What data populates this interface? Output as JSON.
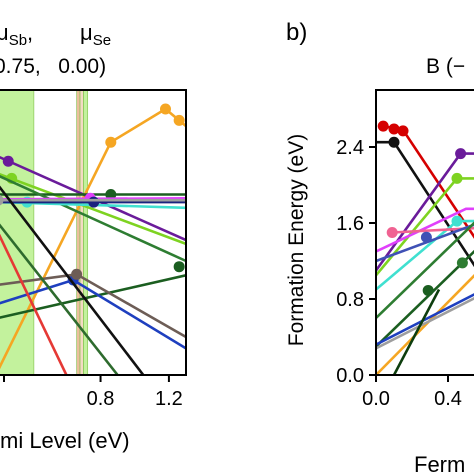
{
  "header": {
    "mu_sb_label": "μ",
    "mu_sb_sub": "Sb",
    "mu_se_label": "μ",
    "mu_se_sub": "Se",
    "comma": ",",
    "values_line": "0.75,   0.00)"
  },
  "chart_data": [
    {
      "type": "line",
      "panel": "a",
      "title": "",
      "xlabel": "mi Level (eV)",
      "ylabel": "",
      "xlim": [
        0.2,
        1.3
      ],
      "ylim": [
        0.0,
        3.0
      ],
      "xticks": [
        "0.8",
        "1.2"
      ],
      "xtick_values": [
        0.8,
        1.2
      ],
      "shaded_bands": [
        {
          "from": 0.2,
          "to": 0.41,
          "color": "#b9f08c"
        },
        {
          "from": 0.66,
          "to": 0.68,
          "color": "#e8b48a"
        },
        {
          "from": 0.68,
          "to": 0.7,
          "color": "#f2d3b8"
        },
        {
          "from": 0.7,
          "to": 0.725,
          "color": "#b9f08c"
        }
      ],
      "series": [
        {
          "color": "#f5a623",
          "x": [
            0.2,
            0.86,
            1.18,
            1.3
          ],
          "y": [
            0.05,
            2.45,
            2.8,
            2.62
          ],
          "points": [
            [
              0.86,
              2.45
            ],
            [
              1.18,
              2.8
            ],
            [
              1.26,
              2.68
            ]
          ]
        },
        {
          "color": "#6a1b9a",
          "x": [
            0.2,
            1.3
          ],
          "y": [
            2.3,
            1.42
          ],
          "points": [
            [
              0.26,
              2.25
            ]
          ]
        },
        {
          "color": "#7ed321",
          "x": [
            0.2,
            1.3
          ],
          "y": [
            2.12,
            1.38
          ],
          "points": [
            [
              0.28,
              2.07
            ]
          ]
        },
        {
          "color": "#1b5e20",
          "x": [
            0.2,
            0.86,
            1.3
          ],
          "y": [
            1.9,
            1.9,
            1.9
          ],
          "points": [
            [
              0.86,
              1.9
            ]
          ]
        },
        {
          "color": "#1b5e20",
          "x": [
            0.2,
            1.3
          ],
          "y": [
            0.6,
            1.05
          ],
          "points": [
            [
              1.26,
              1.14
            ]
          ]
        },
        {
          "color": "#2e7d32",
          "x": [
            0.2,
            1.3
          ],
          "y": [
            2.1,
            1.2
          ],
          "points": []
        },
        {
          "color": "#40e0d0",
          "x": [
            0.2,
            1.3
          ],
          "y": [
            1.82,
            1.76
          ],
          "points": [
            [
              0.37,
              1.82
            ]
          ]
        },
        {
          "color": "#e040fb",
          "x": [
            0.2,
            1.3
          ],
          "y": [
            1.85,
            1.86
          ],
          "points": [
            [
              0.74,
              1.86
            ]
          ]
        },
        {
          "color": "#1a237e",
          "x": [
            0.2,
            1.3
          ],
          "y": [
            1.82,
            1.82
          ],
          "points": [
            [
              0.76,
              1.82
            ]
          ]
        },
        {
          "color": "#9e9e9e",
          "x": [
            0.2,
            1.3
          ],
          "y": [
            1.84,
            1.84
          ],
          "points": [
            [
              0.2,
              1.84
            ]
          ]
        },
        {
          "color": "#1e3fbf",
          "x": [
            0.2,
            0.64,
            1.3
          ],
          "y": [
            0.75,
            1.0,
            0.28
          ],
          "points": [
            [
              0.64,
              1.0
            ]
          ]
        },
        {
          "color": "#6d5d56",
          "x": [
            0.2,
            0.66,
            1.3
          ],
          "y": [
            0.95,
            1.06,
            0.4
          ],
          "points": [
            [
              0.66,
              1.06
            ]
          ]
        },
        {
          "color": "#111111",
          "x": [
            0.2,
            1.05
          ],
          "y": [
            2.0,
            0.0
          ],
          "points": []
        },
        {
          "color": "#2e6b2e",
          "x": [
            0.2,
            0.9
          ],
          "y": [
            1.6,
            0.0
          ],
          "points": []
        },
        {
          "color": "#e53935",
          "x": [
            0.2,
            0.6
          ],
          "y": [
            1.5,
            0.0
          ],
          "points": []
        }
      ]
    },
    {
      "type": "line",
      "panel": "b",
      "panel_label": "b)",
      "title": "B (−",
      "xlabel": "Ferm",
      "ylabel": "Formation Energy (eV)",
      "xlim": [
        0.0,
        0.6
      ],
      "ylim": [
        0.0,
        3.0
      ],
      "xticks": [
        "0.0",
        "0.4"
      ],
      "xtick_values": [
        0.0,
        0.4
      ],
      "yticks": [
        "0.0",
        "0.8",
        "1.6",
        "2.4"
      ],
      "ytick_values": [
        0.0,
        0.8,
        1.6,
        2.4
      ],
      "series": [
        {
          "color": "#d50000",
          "x": [
            0.04,
            0.15,
            0.6
          ],
          "y": [
            2.62,
            2.58,
            1.3
          ],
          "points": [
            [
              0.04,
              2.62
            ],
            [
              0.1,
              2.59
            ],
            [
              0.15,
              2.57
            ]
          ]
        },
        {
          "color": "#111111",
          "x": [
            0.0,
            0.1,
            0.6
          ],
          "y": [
            2.45,
            2.45,
            1.0
          ],
          "points": [
            [
              0.1,
              2.45
            ]
          ]
        },
        {
          "color": "#6a1b9a",
          "x": [
            0.0,
            0.47,
            0.6
          ],
          "y": [
            1.1,
            2.33,
            2.33
          ],
          "points": [
            [
              0.47,
              2.33
            ]
          ]
        },
        {
          "color": "#7ed321",
          "x": [
            0.0,
            0.45,
            0.6
          ],
          "y": [
            1.05,
            2.07,
            2.07
          ],
          "points": [
            [
              0.45,
              2.07
            ]
          ]
        },
        {
          "color": "#e040fb",
          "x": [
            0.0,
            0.5,
            0.6
          ],
          "y": [
            1.3,
            1.75,
            1.75
          ],
          "points": []
        },
        {
          "color": "#40e0d0",
          "x": [
            0.0,
            0.45,
            0.6
          ],
          "y": [
            0.9,
            1.62,
            1.62
          ],
          "points": [
            [
              0.45,
              1.62
            ]
          ]
        },
        {
          "color": "#f06292",
          "x": [
            0.09,
            0.6
          ],
          "y": [
            1.5,
            1.55
          ],
          "points": [
            [
              0.09,
              1.5
            ]
          ]
        },
        {
          "color": "#3f51b5",
          "x": [
            0.0,
            0.6
          ],
          "y": [
            1.2,
            1.62
          ],
          "points": [
            [
              0.28,
              1.45
            ]
          ]
        },
        {
          "color": "#1b5e20",
          "x": [
            0.0,
            0.6
          ],
          "y": [
            0.3,
            1.4
          ],
          "points": [
            [
              0.29,
              0.89
            ]
          ]
        },
        {
          "color": "#2e7d32",
          "x": [
            0.0,
            0.6
          ],
          "y": [
            0.6,
            1.7
          ],
          "points": [
            [
              0.48,
              1.18
            ]
          ]
        },
        {
          "color": "#f5a623",
          "x": [
            0.0,
            0.6
          ],
          "y": [
            0.0,
            1.15
          ],
          "points": []
        },
        {
          "color": "#1e3fbf",
          "x": [
            0.0,
            0.6
          ],
          "y": [
            0.32,
            0.9
          ],
          "points": []
        },
        {
          "color": "#9e9e9e",
          "x": [
            0.0,
            0.6
          ],
          "y": [
            0.28,
            0.86
          ],
          "points": []
        },
        {
          "color": "#0d3d0d",
          "x": [
            0.1,
            0.35
          ],
          "y": [
            0.0,
            0.9
          ],
          "points": []
        }
      ]
    }
  ]
}
